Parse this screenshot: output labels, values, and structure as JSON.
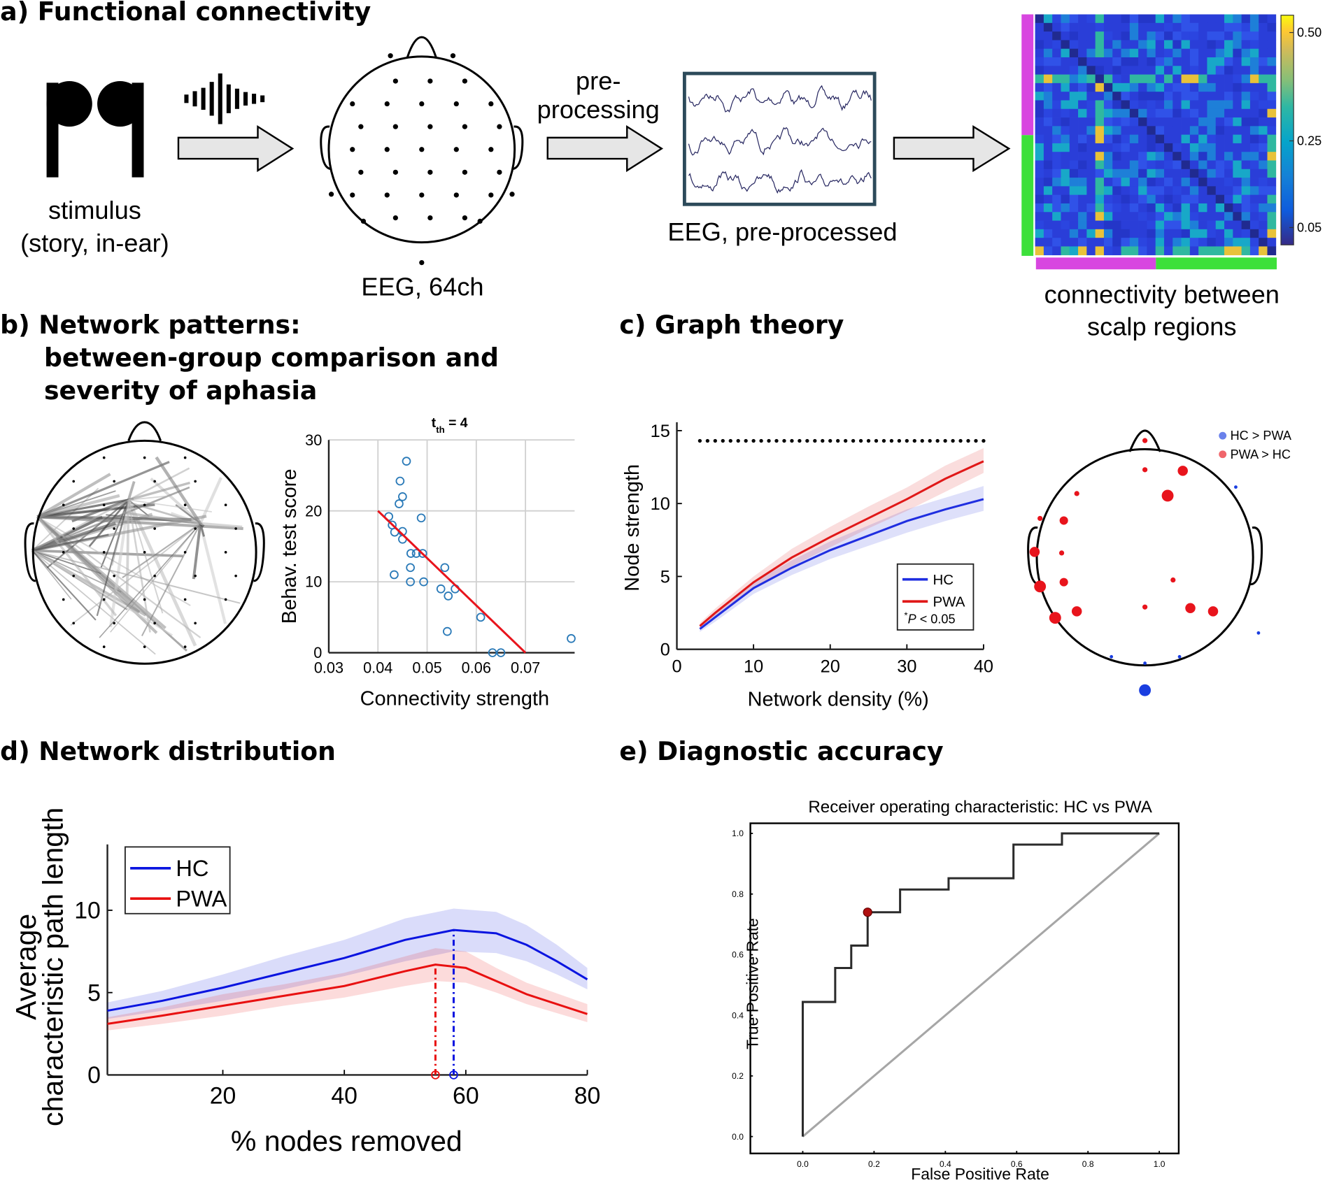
{
  "panel_titles": {
    "a": "a) Functional connectivity",
    "b": [
      "b) Network patterns:",
      "between-group comparison and",
      "severity of aphasia"
    ],
    "c": "c) Graph theory",
    "d": "d) Network distribution",
    "e": "e) Diagnostic accuracy"
  },
  "pipeline": {
    "stimulus": [
      "stimulus",
      "(story, in-ear)"
    ],
    "eeg": "EEG, 64ch",
    "preprocessing": [
      "pre-",
      "processing"
    ],
    "eeg_preprocessed": "EEG, pre-processed",
    "connectivity": [
      "connectivity between",
      "scalp regions"
    ],
    "colorbar_lim": [
      0.01,
      0.54
    ],
    "colorbar_ticks": [
      0.05,
      0.25,
      {
        "value": 0.5,
        "label": "0.50"
      }
    ]
  },
  "chart_data": [
    {
      "type": "scatter",
      "title_parts": [
        "t",
        "th",
        " = 4"
      ],
      "x_label": "Connectivity strength",
      "y_label": "Behav. test score",
      "xlim": [
        0.03,
        0.08
      ],
      "ylim": [
        0,
        30
      ],
      "xticks": [
        0.03,
        0.04,
        0.05,
        0.06,
        0.07
      ],
      "yticks": [
        0,
        10,
        20,
        30
      ],
      "grid": true,
      "points": {
        "color": "#2a7ab8",
        "x": [
          0.0458,
          0.0445,
          0.045,
          0.0443,
          0.0422,
          0.0488,
          0.0429,
          0.0434,
          0.045,
          0.045,
          0.0467,
          0.0478,
          0.0491,
          0.0466,
          0.0536,
          0.0433,
          0.0466,
          0.0493,
          0.0528,
          0.0557,
          0.0543,
          0.0609,
          0.0541,
          0.0633,
          0.065,
          0.0793
        ],
        "y": [
          27,
          24.2,
          22,
          21,
          19.2,
          19,
          18,
          17,
          17.1,
          16,
          14,
          14,
          14,
          12,
          12,
          11,
          10,
          10,
          9,
          9,
          8,
          5,
          3,
          0,
          0,
          2
        ]
      },
      "fit_line": {
        "color": "#e8141c",
        "x": [
          0.04,
          0.07
        ],
        "y": [
          20,
          0
        ]
      }
    },
    {
      "type": "line",
      "x_label": "Network density (%)",
      "y_label": "Node strength",
      "xlim": [
        0,
        40
      ],
      "ylim": [
        0,
        15
      ],
      "xticks": [
        0,
        10,
        20,
        30,
        40
      ],
      "yticks": [
        0,
        5,
        10,
        15
      ],
      "legend": "lower right",
      "annotation_parts": [
        "*",
        "P",
        " < 0.05"
      ],
      "significance_y": 14.3,
      "significance_x": [
        3,
        4,
        5,
        6,
        7,
        8,
        9,
        10,
        11,
        12,
        13,
        14,
        15,
        16,
        17,
        18,
        19,
        20,
        21,
        22,
        23,
        24,
        25,
        26,
        27,
        28,
        29,
        30,
        31,
        32,
        33,
        34,
        35,
        36,
        37,
        38,
        39,
        40
      ],
      "x": [
        3,
        5,
        10,
        15,
        20,
        25,
        30,
        35,
        40
      ],
      "series": [
        {
          "name": "HC",
          "color": "#1f2ee0",
          "values": [
            1.4,
            2.2,
            4.2,
            5.6,
            6.8,
            7.8,
            8.8,
            9.6,
            10.3
          ],
          "ci_lower": [
            1.2,
            1.9,
            3.8,
            5.1,
            6.2,
            7.1,
            8.0,
            8.8,
            9.5
          ],
          "ci_upper": [
            1.6,
            2.5,
            4.6,
            6.1,
            7.4,
            8.5,
            9.6,
            10.4,
            11.2
          ]
        },
        {
          "name": "PWA",
          "color": "#e01818",
          "values": [
            1.6,
            2.5,
            4.6,
            6.3,
            7.7,
            9.0,
            10.3,
            11.7,
            12.9
          ],
          "ci_lower": [
            1.4,
            2.2,
            4.2,
            5.7,
            7.0,
            8.3,
            9.5,
            10.8,
            12.1
          ],
          "ci_upper": [
            1.8,
            2.8,
            5.0,
            6.9,
            8.4,
            9.8,
            11.1,
            12.6,
            13.8
          ]
        }
      ]
    },
    {
      "type": "topoplot",
      "legend": "upper right",
      "series": [
        {
          "name": "HC > PWA",
          "color": "#1a3ee0",
          "x": [
            0.84,
            1.05,
            -0.31,
            0.32,
            0,
            0
          ],
          "y": [
            0.65,
            -0.7,
            -0.92,
            -0.92,
            -0.98,
            -1.23
          ],
          "sizes": [
            2,
            2,
            2,
            2,
            2,
            7
          ]
        },
        {
          "name": "PWA > HC",
          "color": "#e8141c",
          "x": [
            0,
            0.35,
            0,
            -0.63,
            0.21,
            -0.97,
            -0.75,
            -1.02,
            -0.77,
            -0.97,
            -0.75,
            0.26,
            -0.83,
            -0.63,
            0,
            0.42,
            0.63
          ],
          "y": [
            1.08,
            0.8,
            0.81,
            0.59,
            0.57,
            0.36,
            0.34,
            0.05,
            0.04,
            -0.27,
            -0.23,
            -0.21,
            -0.56,
            -0.5,
            -0.46,
            -0.47,
            -0.5
          ],
          "sizes": [
            3,
            6,
            3,
            3,
            7,
            3,
            5,
            6,
            3,
            7,
            5,
            3,
            7,
            6,
            3,
            6,
            6
          ]
        }
      ]
    },
    {
      "type": "line",
      "x_label": "% nodes removed",
      "y_label": [
        "Average",
        "characteristic path length"
      ],
      "xlim": [
        1,
        80
      ],
      "ylim": [
        0,
        14
      ],
      "xticks": [
        20,
        40,
        60,
        80
      ],
      "yticks": [
        0,
        5,
        10
      ],
      "legend": "upper left",
      "series": [
        {
          "name": "HC",
          "color": "#0a14e0",
          "peak_x": 58,
          "x": [
            1,
            10,
            20,
            30,
            40,
            50,
            58,
            65,
            70,
            75,
            80
          ],
          "values": [
            3.9,
            4.5,
            5.3,
            6.2,
            7.1,
            8.2,
            8.8,
            8.6,
            7.9,
            6.9,
            5.8
          ],
          "ci_lower": [
            3.4,
            3.9,
            4.5,
            5.2,
            6.0,
            6.9,
            7.5,
            7.4,
            6.9,
            6.1,
            5.2
          ],
          "ci_upper": [
            4.4,
            5.1,
            6.1,
            7.2,
            8.2,
            9.5,
            10.1,
            9.9,
            9.1,
            7.9,
            6.5
          ]
        },
        {
          "name": "PWA",
          "color": "#e81010",
          "peak_x": 55,
          "x": [
            1,
            10,
            20,
            30,
            40,
            50,
            55,
            60,
            65,
            70,
            80
          ],
          "values": [
            3.1,
            3.6,
            4.2,
            4.8,
            5.4,
            6.3,
            6.7,
            6.5,
            5.7,
            4.9,
            3.7
          ],
          "ci_lower": [
            2.7,
            3.1,
            3.6,
            4.2,
            4.7,
            5.4,
            5.7,
            5.6,
            5.0,
            4.3,
            3.2
          ],
          "ci_upper": [
            3.5,
            4.1,
            4.9,
            5.5,
            6.2,
            7.2,
            7.7,
            7.5,
            6.5,
            5.6,
            4.3
          ]
        }
      ]
    },
    {
      "type": "line",
      "title": "Receiver operating characteristic: HC vs PWA",
      "x_label": "False Positive Rate",
      "y_label": "True Positive Rate",
      "xlim": [
        0,
        1
      ],
      "ylim": [
        0,
        1
      ],
      "xticks": [
        {
          "value": 0,
          "label": "0.0"
        },
        0.2,
        0.4,
        0.6,
        0.8,
        {
          "value": 1,
          "label": "1.0"
        }
      ],
      "yticks": [
        {
          "value": 0,
          "label": "0.0"
        },
        0.2,
        0.4,
        0.6,
        0.8,
        {
          "value": 1,
          "label": "1.0"
        }
      ],
      "series": [
        {
          "color": "#2b2b2b",
          "x": [
            0,
            0,
            0.091,
            0.091,
            0.136,
            0.136,
            0.182,
            0.182,
            0.273,
            0.273,
            0.409,
            0.409,
            0.591,
            0.591,
            0.727,
            0.727,
            1
          ],
          "values": [
            0,
            0.444,
            0.444,
            0.556,
            0.556,
            0.63,
            0.63,
            0.74,
            0.74,
            0.815,
            0.815,
            0.852,
            0.852,
            0.963,
            0.963,
            1,
            1
          ]
        }
      ],
      "chance": {
        "color": "#a6a6a6",
        "x": [
          0,
          1
        ],
        "values": [
          0,
          1
        ]
      },
      "operating_point": {
        "color": "#b01010",
        "x": 0.182,
        "y": 0.74
      }
    }
  ]
}
